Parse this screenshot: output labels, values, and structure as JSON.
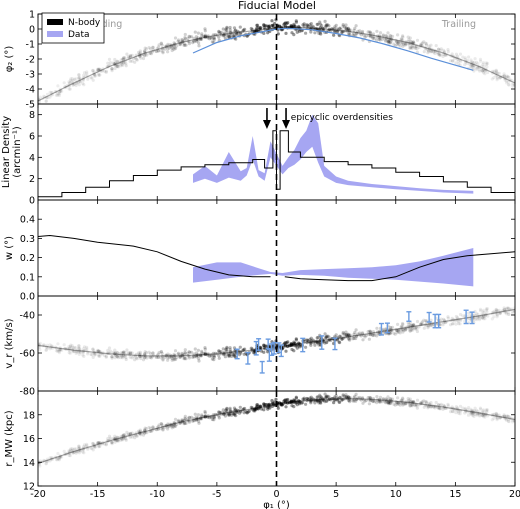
{
  "title": "Fiducial Model",
  "legend": [
    {
      "label": "N-body",
      "color": "#000000"
    },
    {
      "label": "Data",
      "color": "#a6a6f2"
    }
  ],
  "colors": {
    "nbody": "#000000",
    "data_fill": "#a6a6f2",
    "data_line": "#5b8fd8",
    "marker": "#6a9be0"
  },
  "chart_data": [
    {
      "type": "scatter",
      "panel": "phi2",
      "ylabel": "φ₂ (°)",
      "ylim": [
        -5,
        1
      ],
      "yticks": [
        -5,
        -4,
        -3,
        -2,
        -1,
        0,
        1
      ],
      "region_labels": [
        "Leading",
        "Trailing"
      ],
      "nbody_track": {
        "x": [
          -20,
          -17,
          -14,
          -11,
          -8,
          -6,
          -4,
          -2,
          -0.5,
          0.5,
          2,
          4,
          6,
          8,
          11,
          14,
          17,
          20
        ],
        "y": [
          -4.8,
          -3.6,
          -2.5,
          -1.6,
          -0.9,
          -0.55,
          -0.3,
          -0.12,
          0.05,
          0.15,
          0.1,
          0.0,
          -0.15,
          -0.4,
          -0.9,
          -1.6,
          -2.5,
          -3.6
        ]
      },
      "data_track": {
        "x": [
          -7,
          -5,
          -3,
          -1,
          0,
          1,
          3,
          5,
          7,
          9,
          11,
          13,
          16.5
        ],
        "y": [
          -1.6,
          -0.9,
          -0.45,
          -0.15,
          0.0,
          0.05,
          -0.05,
          -0.3,
          -0.6,
          -1.0,
          -1.45,
          -1.95,
          -2.75
        ]
      }
    },
    {
      "type": "line",
      "panel": "density",
      "ylabel": "Linear Density",
      "ylabel2": "(arcmin⁻¹)",
      "ylim": [
        0,
        9
      ],
      "yticks": [
        0,
        2,
        4,
        6,
        8
      ],
      "annotation": "epicyclic overdensities",
      "arrow_x": [
        -0.8,
        0.8
      ],
      "nbody_hist": {
        "x": [
          -20,
          -18,
          -16,
          -14,
          -12,
          -10,
          -8,
          -6,
          -4,
          -2,
          -1,
          -0.3,
          0,
          0.3,
          1,
          2,
          4,
          6,
          8,
          10,
          12,
          14,
          16,
          18,
          20
        ],
        "y": [
          0.3,
          0.7,
          1.2,
          1.8,
          2.3,
          2.8,
          3.1,
          3.3,
          3.5,
          3.8,
          3.0,
          6.5,
          1.0,
          6.5,
          4.5,
          4.0,
          3.6,
          3.3,
          3.0,
          2.6,
          2.2,
          1.7,
          1.2,
          0.7,
          0.3
        ]
      },
      "data_band": {
        "x": [
          -7,
          -6,
          -5,
          -4,
          -3,
          -2.5,
          -2,
          -1.5,
          -1,
          -0.5,
          0.5,
          1,
          1.5,
          2,
          2.5,
          3,
          3.5,
          4,
          5,
          6,
          8,
          10,
          12,
          14,
          16.5
        ],
        "lower": [
          1.6,
          2.0,
          1.6,
          2.1,
          1.8,
          2.3,
          3.8,
          2.2,
          1.8,
          4.0,
          2.4,
          3.0,
          3.3,
          3.8,
          4.5,
          5.0,
          3.5,
          2.2,
          1.6,
          1.4,
          1.2,
          1.0,
          0.85,
          0.7,
          0.6
        ],
        "upper": [
          2.4,
          3.2,
          2.3,
          4.5,
          2.7,
          3.0,
          6.0,
          2.8,
          2.5,
          5.5,
          3.2,
          4.0,
          4.7,
          5.8,
          6.5,
          8.0,
          7.2,
          3.2,
          2.2,
          1.8,
          1.5,
          1.3,
          1.1,
          0.95,
          0.85
        ]
      }
    },
    {
      "type": "line",
      "panel": "width",
      "ylabel": "w (°)",
      "ylim": [
        0.0,
        0.5
      ],
      "yticks": [
        0.0,
        0.1,
        0.2,
        0.3,
        0.4
      ],
      "nbody_line": {
        "x": [
          -20,
          -19,
          -17,
          -15,
          -12,
          -10,
          -8,
          -6,
          -4,
          -2,
          -0.5
        ],
        "y": [
          0.31,
          0.315,
          0.3,
          0.28,
          0.26,
          0.23,
          0.18,
          0.14,
          0.11,
          0.1,
          0.1
        ]
      },
      "nbody_line2": {
        "x": [
          0.7,
          2,
          4,
          6,
          8,
          10,
          12,
          14,
          16,
          18,
          20
        ],
        "y": [
          0.1,
          0.09,
          0.085,
          0.08,
          0.08,
          0.1,
          0.15,
          0.19,
          0.21,
          0.22,
          0.23
        ]
      },
      "data_band": {
        "x": [
          -7,
          -5,
          -3,
          -1.5,
          -0.5,
          0.5,
          2,
          4,
          6,
          8,
          10,
          12,
          14,
          16.5
        ],
        "lower": [
          0.07,
          0.085,
          0.1,
          0.11,
          0.115,
          0.105,
          0.11,
          0.105,
          0.095,
          0.09,
          0.085,
          0.075,
          0.065,
          0.05
        ],
        "upper": [
          0.15,
          0.175,
          0.175,
          0.145,
          0.125,
          0.12,
          0.135,
          0.14,
          0.145,
          0.15,
          0.16,
          0.18,
          0.21,
          0.25
        ]
      }
    },
    {
      "type": "scatter",
      "panel": "vr",
      "ylabel": "v_r (km/s)",
      "ylim": [
        -80,
        -30
      ],
      "yticks": [
        -80,
        -60,
        -40
      ],
      "nbody_track": {
        "x": [
          -20,
          -17,
          -14,
          -11,
          -8,
          -5,
          -2,
          0,
          2,
          5,
          8,
          11,
          14,
          17,
          20
        ],
        "y": [
          -56,
          -58.5,
          -60.5,
          -61.5,
          -61.5,
          -60.5,
          -58.5,
          -57,
          -55,
          -52.5,
          -49.5,
          -46.5,
          -43.5,
          -40.5,
          -37
        ]
      },
      "points": {
        "x": [
          -3.3,
          -2.4,
          -1.7,
          -1.5,
          -1.2,
          -0.7,
          -0.6,
          -0.4,
          -0.2,
          0.2,
          0.4,
          2.2,
          3.8,
          4.9,
          8.8,
          9.3,
          11.1,
          12.8,
          13.3,
          13.6,
          15.9,
          16.4
        ],
        "y": [
          -60.5,
          -62.8,
          -57.5,
          -55.5,
          -67.5,
          -55.2,
          -61.3,
          -58.2,
          -57.5,
          -57.2,
          -58.8,
          -55.8,
          -54.5,
          -55.2,
          -47.5,
          -46.8,
          -40.8,
          -41.2,
          -43.2,
          -43.2,
          -41.0,
          -41.5
        ],
        "err": [
          2.5,
          3.0,
          3.5,
          3.0,
          3.0,
          2.5,
          3.0,
          3.0,
          3.0,
          2.5,
          3.0,
          3.5,
          3.5,
          3.0,
          3.0,
          2.5,
          2.5,
          2.5,
          3.5,
          3.5,
          3.5,
          3.0
        ]
      }
    },
    {
      "type": "scatter",
      "panel": "rmw",
      "ylabel": "r_MW (kpc)",
      "xlabel": "φ₁ (°)",
      "ylim": [
        12,
        20
      ],
      "yticks": [
        12,
        14,
        16,
        18
      ],
      "xlim": [
        -20,
        20
      ],
      "xticks": [
        -20,
        -15,
        -10,
        -5,
        0,
        5,
        10,
        15,
        20
      ],
      "nbody_track": {
        "x": [
          -20,
          -17,
          -14,
          -11,
          -8,
          -6,
          -4,
          -2,
          -0.5,
          0.5,
          2,
          4,
          6,
          8,
          11,
          14,
          17,
          20
        ],
        "y": [
          13.9,
          14.9,
          15.8,
          16.6,
          17.4,
          17.8,
          18.2,
          18.5,
          18.75,
          19.0,
          19.15,
          19.3,
          19.35,
          19.3,
          19.05,
          18.65,
          18.15,
          17.6
        ]
      }
    }
  ]
}
